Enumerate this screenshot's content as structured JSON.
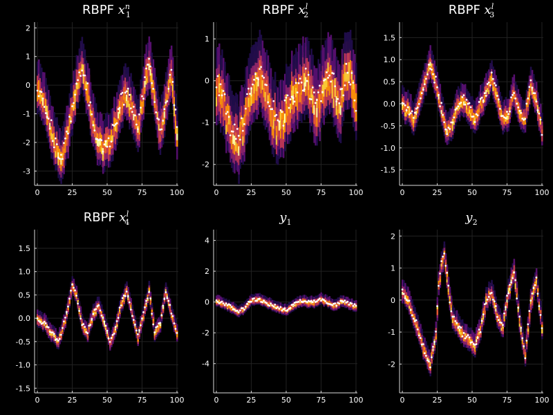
{
  "figure": {
    "background": "#000000",
    "axis_color": "#dddddd",
    "point_color": "#ffffff"
  },
  "colormap": [
    "#000004",
    "#1f0c48",
    "#550f6d",
    "#88226a",
    "#ba3655",
    "#e35933",
    "#f98e09",
    "#f9cb35",
    "#fcffa4"
  ],
  "chart_data": [
    {
      "type": "heatmap",
      "title": "RBPF x₁ⁿ",
      "title_parts": {
        "base": "RBPF ",
        "sym": "x",
        "sub": "1",
        "sup": "n"
      },
      "xlim": [
        -2,
        101
      ],
      "ylim": [
        -3.5,
        2.2
      ],
      "xticks": [
        0,
        25,
        50,
        75,
        100
      ],
      "yticks": [
        -3,
        -2,
        -1,
        0,
        1,
        2
      ],
      "band": 0.5,
      "x": [
        0,
        4,
        8,
        12,
        16,
        18,
        20,
        24,
        28,
        30,
        32,
        36,
        40,
        44,
        48,
        52,
        56,
        60,
        64,
        68,
        72,
        76,
        80,
        84,
        88,
        92,
        96,
        100
      ],
      "y": [
        0.0,
        -0.4,
        -1.1,
        -1.9,
        -2.4,
        -2.5,
        -2.0,
        -1.0,
        0.0,
        0.4,
        0.8,
        -0.2,
        -1.3,
        -1.9,
        -2.1,
        -1.9,
        -1.3,
        -0.6,
        -0.2,
        -0.8,
        -1.4,
        -0.2,
        0.9,
        -0.4,
        -1.5,
        -0.6,
        0.5,
        -1.7
      ]
    },
    {
      "type": "heatmap",
      "title": "RBPF x₂ˡ",
      "title_parts": {
        "base": "RBPF ",
        "sym": "x",
        "sub": "2",
        "sup": "l"
      },
      "xlim": [
        -2,
        101
      ],
      "ylim": [
        -2.5,
        1.4
      ],
      "xticks": [
        0,
        25,
        50,
        75,
        100
      ],
      "yticks": [
        -2,
        -1,
        0,
        1
      ],
      "band": 0.5,
      "x": [
        0,
        4,
        8,
        12,
        16,
        20,
        24,
        28,
        32,
        36,
        40,
        44,
        48,
        52,
        56,
        60,
        64,
        68,
        72,
        76,
        80,
        84,
        88,
        92,
        96,
        100
      ],
      "y": [
        0.0,
        -0.3,
        -0.8,
        -1.3,
        -1.4,
        -0.9,
        -0.3,
        0.1,
        0.2,
        -0.2,
        -0.7,
        -1.0,
        -0.8,
        -0.5,
        -0.2,
        0.0,
        0.1,
        -0.3,
        -0.6,
        -0.2,
        0.3,
        -0.1,
        -0.6,
        0.1,
        0.2,
        -0.5
      ]
    },
    {
      "type": "heatmap",
      "title": "RBPF x₃ˡ",
      "title_parts": {
        "base": "RBPF ",
        "sym": "x",
        "sub": "3",
        "sup": "l"
      },
      "xlim": [
        -2,
        101
      ],
      "ylim": [
        -1.85,
        1.85
      ],
      "xticks": [
        0,
        25,
        50,
        75,
        100
      ],
      "yticks": [
        -1.5,
        -1.0,
        -0.5,
        0.0,
        0.5,
        1.0,
        1.5
      ],
      "band": 0.2,
      "x": [
        0,
        4,
        8,
        12,
        16,
        20,
        24,
        28,
        32,
        36,
        40,
        44,
        48,
        52,
        56,
        60,
        64,
        68,
        72,
        76,
        80,
        84,
        88,
        92,
        96,
        100
      ],
      "y": [
        0.0,
        -0.1,
        -0.3,
        0.1,
        0.5,
        0.9,
        0.5,
        -0.1,
        -0.6,
        -0.4,
        0.0,
        0.1,
        -0.1,
        -0.3,
        0.0,
        0.3,
        0.6,
        0.2,
        -0.3,
        -0.2,
        0.3,
        -0.2,
        -0.3,
        0.5,
        0.1,
        -0.6
      ]
    },
    {
      "type": "heatmap",
      "title": "RBPF x₄ˡ",
      "title_parts": {
        "base": "RBPF ",
        "sym": "x",
        "sub": "4",
        "sup": "l"
      },
      "xlim": [
        -2,
        101
      ],
      "ylim": [
        -1.6,
        1.9
      ],
      "xticks": [
        0,
        25,
        50,
        75,
        100
      ],
      "yticks": [
        -1.5,
        -1.0,
        -0.5,
        0.0,
        0.5,
        1.0,
        1.5
      ],
      "band": 0.1,
      "x": [
        0,
        5,
        10,
        15,
        20,
        25,
        28,
        32,
        36,
        40,
        44,
        48,
        52,
        56,
        60,
        64,
        68,
        72,
        76,
        80,
        84,
        88,
        92,
        96,
        100
      ],
      "y": [
        0.0,
        -0.1,
        -0.3,
        -0.5,
        0.0,
        0.7,
        0.5,
        -0.1,
        -0.3,
        0.1,
        0.3,
        -0.1,
        -0.5,
        -0.2,
        0.3,
        0.6,
        0.1,
        -0.4,
        0.1,
        0.6,
        -0.3,
        -0.1,
        0.6,
        0.1,
        -0.3
      ]
    },
    {
      "type": "heatmap",
      "title": "y₁",
      "title_parts": {
        "base": "",
        "sym": "y",
        "sub": "1",
        "sup": ""
      },
      "xlim": [
        -2,
        101
      ],
      "ylim": [
        -5.9,
        4.7
      ],
      "xticks": [
        0,
        25,
        50,
        75,
        100
      ],
      "yticks": [
        -4,
        -2,
        0,
        2,
        4
      ],
      "band": 0.2,
      "x": [
        0,
        5,
        10,
        15,
        20,
        25,
        30,
        35,
        40,
        45,
        50,
        55,
        60,
        65,
        70,
        75,
        80,
        85,
        90,
        95,
        100
      ],
      "y": [
        0.1,
        -0.1,
        -0.3,
        -0.6,
        -0.4,
        0.1,
        0.2,
        0.0,
        -0.2,
        -0.4,
        -0.5,
        -0.2,
        0.1,
        0.0,
        0.0,
        0.2,
        0.0,
        -0.2,
        0.1,
        -0.1,
        -0.3
      ]
    },
    {
      "type": "heatmap",
      "title": "y₂",
      "title_parts": {
        "base": "",
        "sym": "y",
        "sub": "2",
        "sup": ""
      },
      "xlim": [
        -2,
        101
      ],
      "ylim": [
        -2.9,
        2.2
      ],
      "xticks": [
        0,
        25,
        50,
        75,
        100
      ],
      "yticks": [
        -2,
        -1,
        0,
        1,
        2
      ],
      "band": 0.2,
      "x": [
        0,
        4,
        8,
        12,
        16,
        20,
        24,
        26,
        28,
        30,
        32,
        34,
        36,
        40,
        44,
        48,
        52,
        56,
        60,
        64,
        68,
        72,
        76,
        80,
        84,
        88,
        92,
        96,
        100
      ],
      "y": [
        0.3,
        0.0,
        -0.5,
        -1.0,
        -1.6,
        -2.0,
        -1.0,
        0.5,
        1.1,
        1.4,
        0.8,
        0.0,
        -0.5,
        -0.8,
        -1.1,
        -1.2,
        -1.4,
        -0.9,
        0.0,
        0.3,
        -0.5,
        -0.8,
        0.3,
        0.9,
        -0.6,
        -1.7,
        0.0,
        0.6,
        -0.8
      ]
    }
  ]
}
